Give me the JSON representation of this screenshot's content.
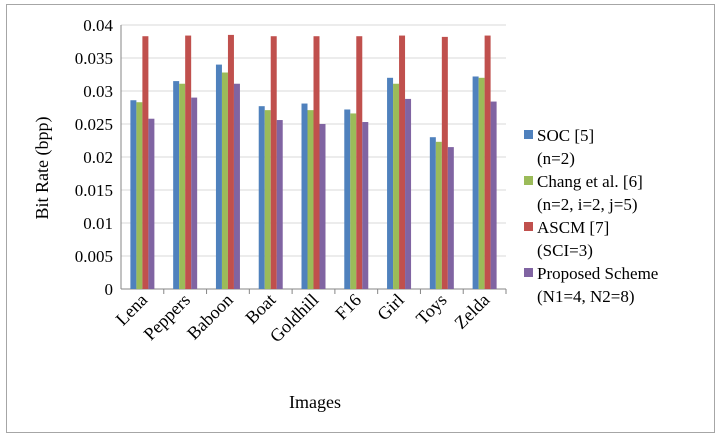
{
  "chart_data": {
    "type": "bar",
    "title": "",
    "xlabel": "Images",
    "ylabel": "Bit Rate (bpp)",
    "ylim": [
      0,
      0.04
    ],
    "yticks": [
      "0",
      "0.005",
      "0.01",
      "0.015",
      "0.02",
      "0.025",
      "0.03",
      "0.035",
      "0.04"
    ],
    "categories": [
      "Lena",
      "Peppers",
      "Baboon",
      "Boat",
      "Goldhill",
      "F16",
      "Girl",
      "Toys",
      "Zelda"
    ],
    "legend_position": "right",
    "grid": "horizontal",
    "series": [
      {
        "name": "SOC [5]",
        "params": "(n=2)",
        "color": "#4f81bd",
        "values": [
          0.0286,
          0.0315,
          0.034,
          0.0277,
          0.0281,
          0.0272,
          0.032,
          0.023,
          0.0322
        ]
      },
      {
        "name": "Chang et al. [6]",
        "params": "(n=2, i=2, j=5)",
        "color": "#9bbb59",
        "values": [
          0.0283,
          0.0311,
          0.0328,
          0.0271,
          0.0271,
          0.0266,
          0.0311,
          0.0223,
          0.032
        ]
      },
      {
        "name": "ASCM [7]",
        "params": "(SCI=3)",
        "color": "#c0504d",
        "values": [
          0.0383,
          0.0384,
          0.0385,
          0.0383,
          0.0383,
          0.0383,
          0.0384,
          0.0382,
          0.0384
        ]
      },
      {
        "name": "Proposed Scheme",
        "params": "(N1=4, N2=8)",
        "color": "#8064a2",
        "values": [
          0.0258,
          0.029,
          0.0311,
          0.0256,
          0.025,
          0.0253,
          0.0288,
          0.0215,
          0.0284
        ]
      }
    ]
  }
}
